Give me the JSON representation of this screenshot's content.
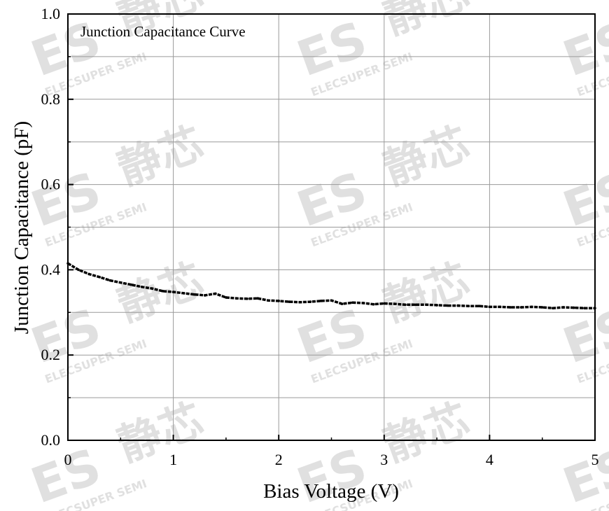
{
  "watermark": {
    "brand": "ES",
    "text": "ELECSUPER SEMI",
    "cjk": "静芯",
    "color": "#c8c8c8"
  },
  "chart_data": {
    "type": "line",
    "title": "Junction Capacitance Curve",
    "xlabel": "Bias Voltage (V)",
    "ylabel": "Junction Capacitance (pF)",
    "xlim": [
      0,
      5
    ],
    "ylim": [
      0,
      1.0
    ],
    "x_ticks": [
      0,
      1,
      2,
      3,
      4,
      5
    ],
    "x_tick_labels": [
      "0",
      "1",
      "2",
      "3",
      "4",
      "5"
    ],
    "y_ticks": [
      0,
      0.2,
      0.4,
      0.6,
      0.8,
      1.0
    ],
    "y_tick_labels": [
      "0.0",
      "0.2",
      "0.4",
      "0.6",
      "0.8",
      "1.0"
    ],
    "grid": true,
    "line_color": "#000000",
    "series": [
      {
        "x": [
          0,
          0.1,
          0.2,
          0.3,
          0.4,
          0.5,
          0.6,
          0.7,
          0.8,
          0.9,
          1.0,
          1.1,
          1.2,
          1.3,
          1.4,
          1.5,
          1.6,
          1.7,
          1.8,
          1.9,
          2.0,
          2.1,
          2.2,
          2.3,
          2.4,
          2.5,
          2.6,
          2.7,
          2.8,
          2.9,
          3.0,
          3.1,
          3.2,
          3.3,
          3.4,
          3.5,
          3.6,
          3.7,
          3.8,
          3.9,
          4.0,
          4.1,
          4.2,
          4.3,
          4.4,
          4.5,
          4.6,
          4.7,
          4.8,
          4.9,
          5.0
        ],
        "values": [
          0.415,
          0.4,
          0.39,
          0.383,
          0.375,
          0.37,
          0.365,
          0.36,
          0.356,
          0.35,
          0.348,
          0.345,
          0.342,
          0.34,
          0.344,
          0.335,
          0.333,
          0.332,
          0.333,
          0.328,
          0.327,
          0.325,
          0.324,
          0.325,
          0.327,
          0.328,
          0.32,
          0.323,
          0.322,
          0.319,
          0.321,
          0.32,
          0.318,
          0.318,
          0.318,
          0.317,
          0.316,
          0.316,
          0.315,
          0.315,
          0.313,
          0.313,
          0.312,
          0.312,
          0.313,
          0.312,
          0.31,
          0.312,
          0.311,
          0.31,
          0.31
        ]
      }
    ]
  }
}
